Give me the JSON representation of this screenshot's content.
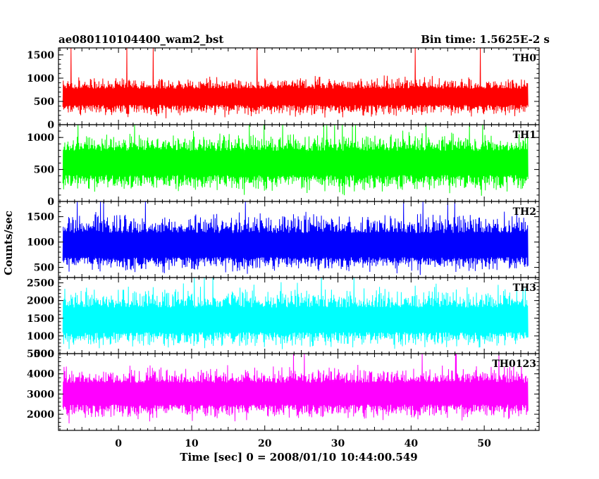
{
  "chart_data": {
    "type": "line",
    "title_left": "ae080110104400_wam2_bst",
    "title_right": "Bin time: 1.5625E-2 s",
    "ylabel": "Counts/sec",
    "xlabel": "Time [sec] 0 = 2008/01/10 10:44:00.549",
    "xlim": [
      -8.2,
      57.5
    ],
    "data_x_range": [
      -7.6,
      56.0
    ],
    "x_ticks_major": [
      0,
      10,
      20,
      30,
      40,
      50
    ],
    "x_ticks_minor": [
      -5,
      5,
      15,
      25,
      35,
      45,
      55
    ],
    "panels": [
      {
        "name": "TH0",
        "color": "#ff0000",
        "ylim": [
          0,
          1650
        ],
        "y_ticks": [
          0,
          500,
          1000,
          1500
        ],
        "baseline": 600,
        "low": 100,
        "high": 1100,
        "max_spike": 1650
      },
      {
        "name": "TH1",
        "color": "#00ff00",
        "ylim": [
          0,
          1200
        ],
        "y_ticks": [
          0,
          500,
          1000
        ],
        "baseline": 600,
        "low": 60,
        "high": 1150,
        "max_spike": 1200
      },
      {
        "name": "TH2",
        "color": "#0000ff",
        "ylim": [
          300,
          1800
        ],
        "y_ticks": [
          500,
          1000,
          1500
        ],
        "baseline": 900,
        "low": 330,
        "high": 1700,
        "max_spike": 1800
      },
      {
        "name": "TH3",
        "color": "#00ffff",
        "ylim": [
          500,
          2650
        ],
        "y_ticks": [
          500,
          1000,
          1500,
          2000,
          2500
        ],
        "baseline": 1400,
        "low": 550,
        "high": 2550,
        "max_spike": 2650
      },
      {
        "name": "TH0123",
        "color": "#ff00ff",
        "ylim": [
          1200,
          5000
        ],
        "y_ticks": [
          2000,
          3000,
          4000,
          5000
        ],
        "baseline": 3000,
        "low": 1500,
        "high": 4600,
        "max_spike": 5000
      }
    ]
  }
}
